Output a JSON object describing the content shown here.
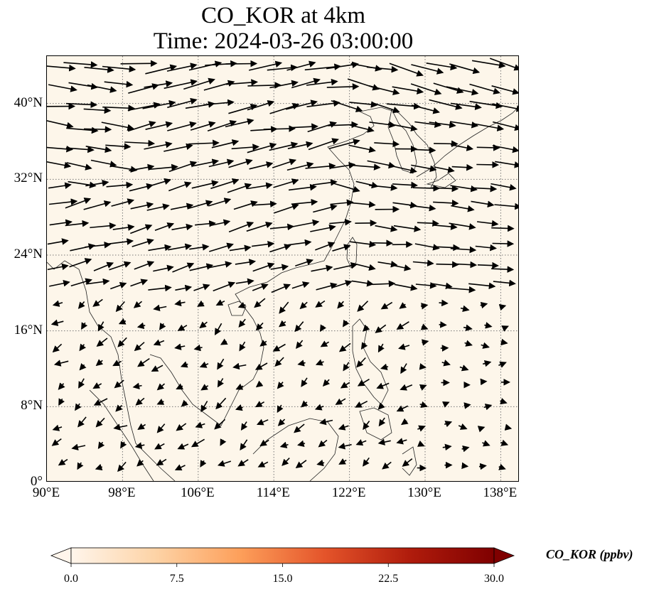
{
  "title": {
    "line1": "CO_KOR at 4km",
    "line2": "Time: 2024-03-26 03:00:00"
  },
  "map": {
    "lon_range": [
      90,
      140
    ],
    "lat_range": [
      0,
      45
    ],
    "lat_ticks": [
      {
        "value": 40,
        "label": "40°N"
      },
      {
        "value": 32,
        "label": "32°N"
      },
      {
        "value": 24,
        "label": "24°N"
      },
      {
        "value": 16,
        "label": "16°N"
      },
      {
        "value": 8,
        "label": "8°N"
      },
      {
        "value": 0,
        "label": "0°"
      }
    ],
    "lon_ticks": [
      {
        "value": 90,
        "label": "90°E"
      },
      {
        "value": 98,
        "label": "98°E"
      },
      {
        "value": 106,
        "label": "106°E"
      },
      {
        "value": 114,
        "label": "114°E"
      },
      {
        "value": 122,
        "label": "122°E"
      },
      {
        "value": 130,
        "label": "130°E"
      },
      {
        "value": 138,
        "label": "138°E"
      }
    ],
    "gridlines": "dotted",
    "field_color": "#fdf6ea"
  },
  "colorbar": {
    "title": "CO_KOR (ppbv)",
    "range": [
      0,
      30
    ],
    "ticks": [
      "0.0",
      "7.5",
      "15.0",
      "22.5",
      "30.0"
    ],
    "colors": [
      "#fff5eb",
      "#fdd3a6",
      "#fd9f5a",
      "#e4542a",
      "#b01c0c",
      "#7f0000"
    ]
  },
  "wind_vectors_note": ""
}
